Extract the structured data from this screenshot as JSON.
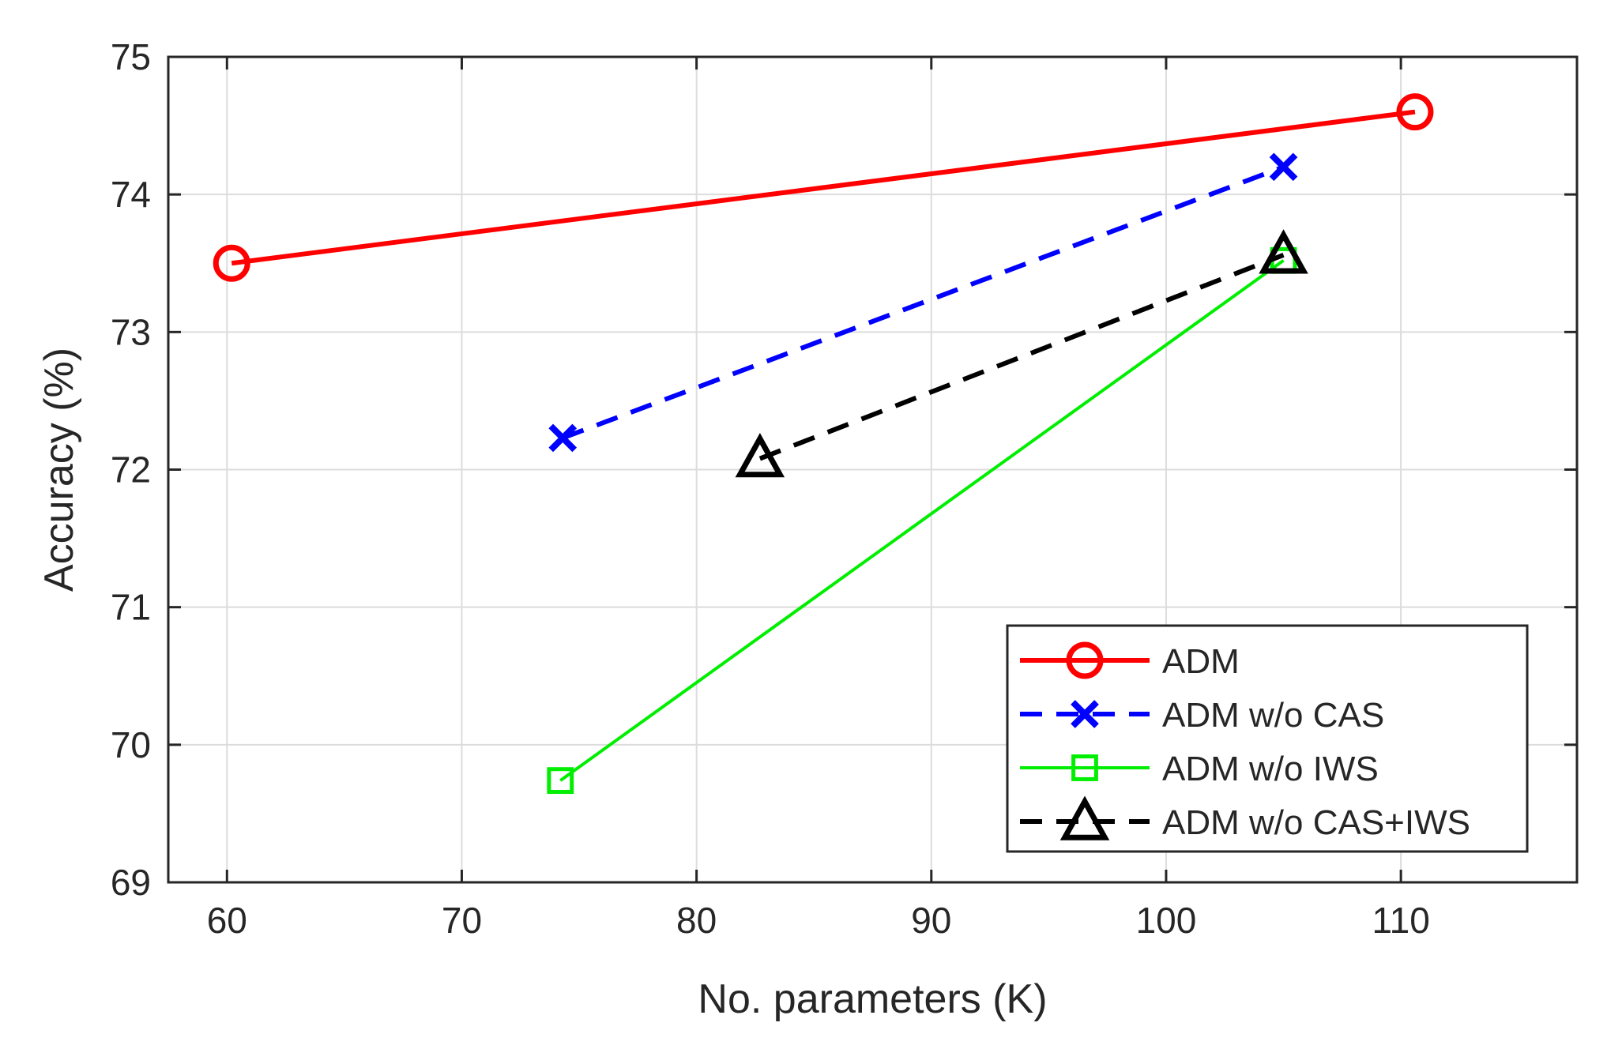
{
  "chart_data": {
    "type": "line",
    "title": "",
    "xlabel": "No. parameters (K)",
    "ylabel": "Accuracy (%)",
    "xlim": [
      57.5,
      117.5
    ],
    "ylim": [
      69,
      75
    ],
    "xticks": [
      60,
      70,
      80,
      90,
      100,
      110
    ],
    "yticks": [
      69,
      70,
      71,
      72,
      73,
      74,
      75
    ],
    "grid": true,
    "legend_position": "bottom-right",
    "series": [
      {
        "name": "ADM",
        "x": [
          60.2,
          110.6
        ],
        "y": [
          73.5,
          74.6
        ],
        "color": "#ff0000",
        "line_style": "solid",
        "marker": "circle"
      },
      {
        "name": "ADM w/o CAS",
        "x": [
          74.3,
          105.0
        ],
        "y": [
          72.23,
          74.2
        ],
        "color": "#0000ff",
        "line_style": "dashed",
        "marker": "x"
      },
      {
        "name": "ADM w/o IWS",
        "x": [
          74.2,
          105.0
        ],
        "y": [
          69.74,
          73.52
        ],
        "color": "#00ee00",
        "line_style": "solid",
        "marker": "square"
      },
      {
        "name": "ADM w/o CAS+IWS",
        "x": [
          82.7,
          105.0
        ],
        "y": [
          72.08,
          73.56
        ],
        "color": "#000000",
        "line_style": "dashed",
        "marker": "triangle"
      }
    ]
  }
}
